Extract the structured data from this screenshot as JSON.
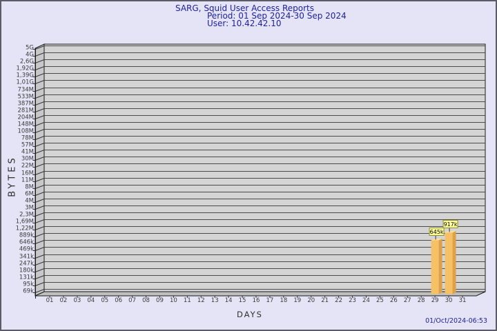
{
  "titles": {
    "line1": "SARG, Squid User Access Reports",
    "line2": "Period: 01 Sep 2024-30 Sep 2024",
    "line3": "User: 10.42.42.10"
  },
  "footer": {
    "timestamp": "01/Oct/2024-06:53"
  },
  "chart_data": {
    "type": "bar",
    "title": "SARG, Squid User Access Reports",
    "subtitle": "Period: 01 Sep 2024-30 Sep 2024",
    "user": "User: 10.42.42.10",
    "xlabel": "DAYS",
    "ylabel": "BYTES",
    "y_scale": "log",
    "y_min": 69000,
    "y_max": 5000000000,
    "grid": true,
    "style_3d": true,
    "y_tick_labels": [
      "5G",
      "4G",
      "2,6G",
      "1,92G",
      "1,39G",
      "1,01G",
      "734M",
      "533M",
      "387M",
      "281M",
      "204M",
      "148M",
      "108M",
      "78M",
      "57M",
      "41M",
      "30M",
      "22M",
      "16M",
      "11M",
      "8M",
      "6M",
      "4M",
      "3M",
      "2,3M",
      "1,69M",
      "1,22M",
      "889k",
      "646k",
      "469k",
      "341k",
      "247k",
      "180k",
      "131k",
      "95k",
      "69k"
    ],
    "y_tick_values": [
      5000000000,
      4000000000,
      2600000000,
      1920000000,
      1390000000,
      1010000000,
      734000000,
      533000000,
      387000000,
      281000000,
      204000000,
      148000000,
      108000000,
      78000000,
      57000000,
      41000000,
      30000000,
      22000000,
      16000000,
      11000000,
      8000000,
      6000000,
      4000000,
      3000000,
      2300000,
      1690000,
      1220000,
      889000,
      646000,
      469000,
      341000,
      247000,
      180000,
      131000,
      95000,
      69000
    ],
    "x_tick_labels": [
      "01",
      "02",
      "03",
      "04",
      "05",
      "06",
      "07",
      "08",
      "09",
      "10",
      "11",
      "12",
      "13",
      "14",
      "15",
      "16",
      "17",
      "18",
      "19",
      "20",
      "21",
      "22",
      "23",
      "24",
      "25",
      "26",
      "27",
      "28",
      "29",
      "30",
      "31"
    ],
    "bars": [
      {
        "day": 29,
        "label": "645k",
        "value": 645000
      },
      {
        "day": 30,
        "label": "917k",
        "value": 917000
      }
    ],
    "colors": {
      "title": "#2020a0",
      "panel": "#d4d4d4",
      "wall": "#c8c8c8",
      "floor": "#bfbfbf",
      "grid_line": "#4a4a4a",
      "axis_line": "#1a1a1a",
      "bar_front": "#f6c164",
      "bar_side": "#dfa148",
      "bar_top": "#fcdf9e",
      "value_box_bg": "#ffff9e",
      "value_box_border": "#8f8f2a"
    }
  }
}
